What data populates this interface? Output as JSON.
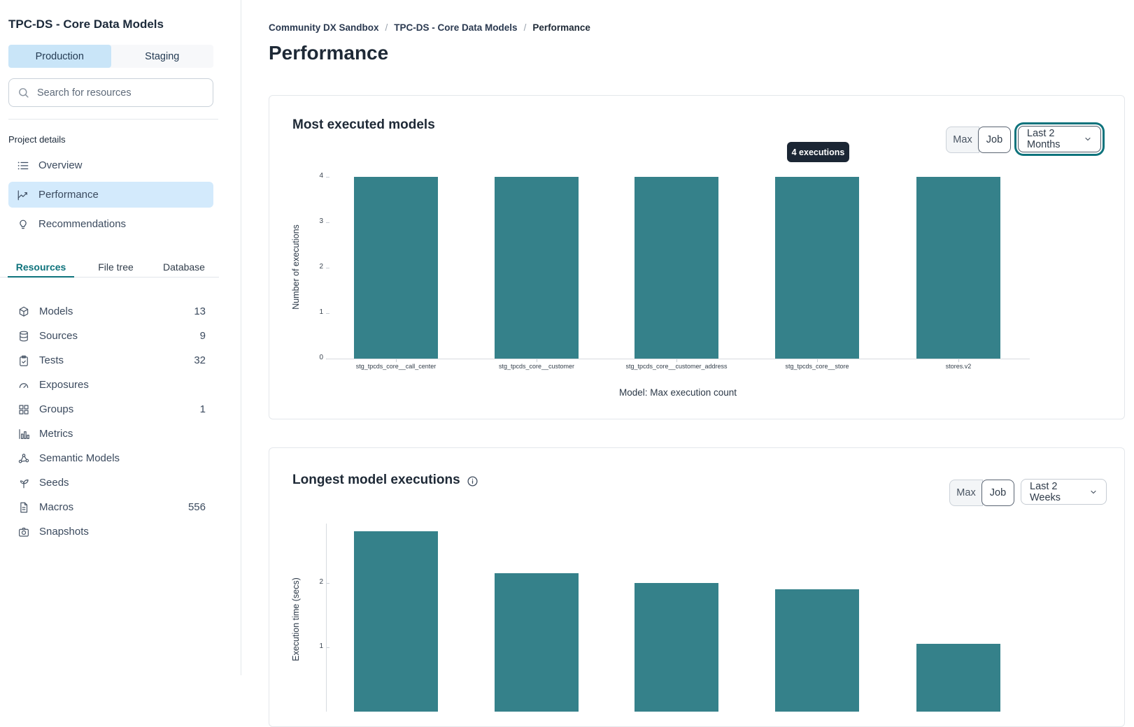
{
  "sidebar": {
    "title": "TPC-DS - Core Data Models",
    "environments": [
      {
        "label": "Production",
        "active": true
      },
      {
        "label": "Staging",
        "active": false
      }
    ],
    "search": {
      "placeholder": "Search for resources"
    },
    "project_details": {
      "label": "Project details",
      "items": [
        {
          "label": "Overview",
          "icon": "overview-list-icon",
          "active": false
        },
        {
          "label": "Performance",
          "icon": "performance-chart-icon",
          "active": true
        },
        {
          "label": "Recommendations",
          "icon": "lightbulb-icon",
          "active": false
        }
      ]
    },
    "tabs": [
      {
        "label": "Resources",
        "active": true
      },
      {
        "label": "File tree",
        "active": false
      },
      {
        "label": "Database",
        "active": false
      }
    ],
    "resources": [
      {
        "label": "Models",
        "count": "13",
        "icon": "cube-icon"
      },
      {
        "label": "Sources",
        "count": "9",
        "icon": "database-icon"
      },
      {
        "label": "Tests",
        "count": "32",
        "icon": "clipboard-check-icon"
      },
      {
        "label": "Exposures",
        "count": "",
        "icon": "gauge-icon"
      },
      {
        "label": "Groups",
        "count": "1",
        "icon": "grid-icon"
      },
      {
        "label": "Metrics",
        "count": "",
        "icon": "bar-chart-icon"
      },
      {
        "label": "Semantic Models",
        "count": "",
        "icon": "graph-nodes-icon"
      },
      {
        "label": "Seeds",
        "count": "",
        "icon": "seedling-icon"
      },
      {
        "label": "Macros",
        "count": "556",
        "icon": "file-icon"
      },
      {
        "label": "Snapshots",
        "count": "",
        "icon": "camera-icon"
      }
    ]
  },
  "main": {
    "breadcrumb": {
      "items": [
        "Community DX Sandbox",
        "TPC-DS - Core Data Models",
        "Performance"
      ],
      "separator": "/"
    },
    "title": "Performance",
    "cards": [
      {
        "title": "Most executed models",
        "toggle_max": "Max",
        "toggle_job": "Job",
        "period": "Last 2 Months",
        "tooltip": "4 executions",
        "has_info_icon": false
      },
      {
        "title": "Longest model executions",
        "toggle_max": "Max",
        "toggle_job": "Job",
        "period": "Last 2 Weeks",
        "has_info_icon": true
      }
    ]
  },
  "chart_data": [
    {
      "type": "bar",
      "title": "Most executed models",
      "categories": [
        "stg_tpcds_core__call_center",
        "stg_tpcds_core__customer",
        "stg_tpcds_core__customer_address",
        "stg_tpcds_core__store",
        "stores.v2"
      ],
      "values": [
        4,
        4,
        4,
        4,
        4
      ],
      "ylabel": "Number of executions",
      "xlabel": "Model: Max execution count",
      "ylim": [
        0,
        4
      ],
      "yticks": [
        0,
        1,
        2,
        3,
        4
      ],
      "grid": false,
      "legend": false,
      "bar_color": "#35818a",
      "annotation": "4 executions"
    },
    {
      "type": "bar",
      "title": "Longest model executions",
      "categories": [],
      "values": [
        2.8,
        2.15,
        2.0,
        1.9,
        1.05
      ],
      "ylabel": "Execution time (secs)",
      "xlabel": "",
      "ylim": [
        0,
        3
      ],
      "yticks": [
        1,
        2
      ],
      "grid": false,
      "legend": false,
      "bar_color": "#35818a"
    }
  ],
  "colors": {
    "accent_teal": "#0e737c",
    "bar_teal": "#35818a",
    "selected_blue": "#c9e5f8",
    "active_nav_blue": "#d3eafc",
    "tooltip_bg": "#1b2634",
    "border_grey": "#e4e7eb"
  }
}
